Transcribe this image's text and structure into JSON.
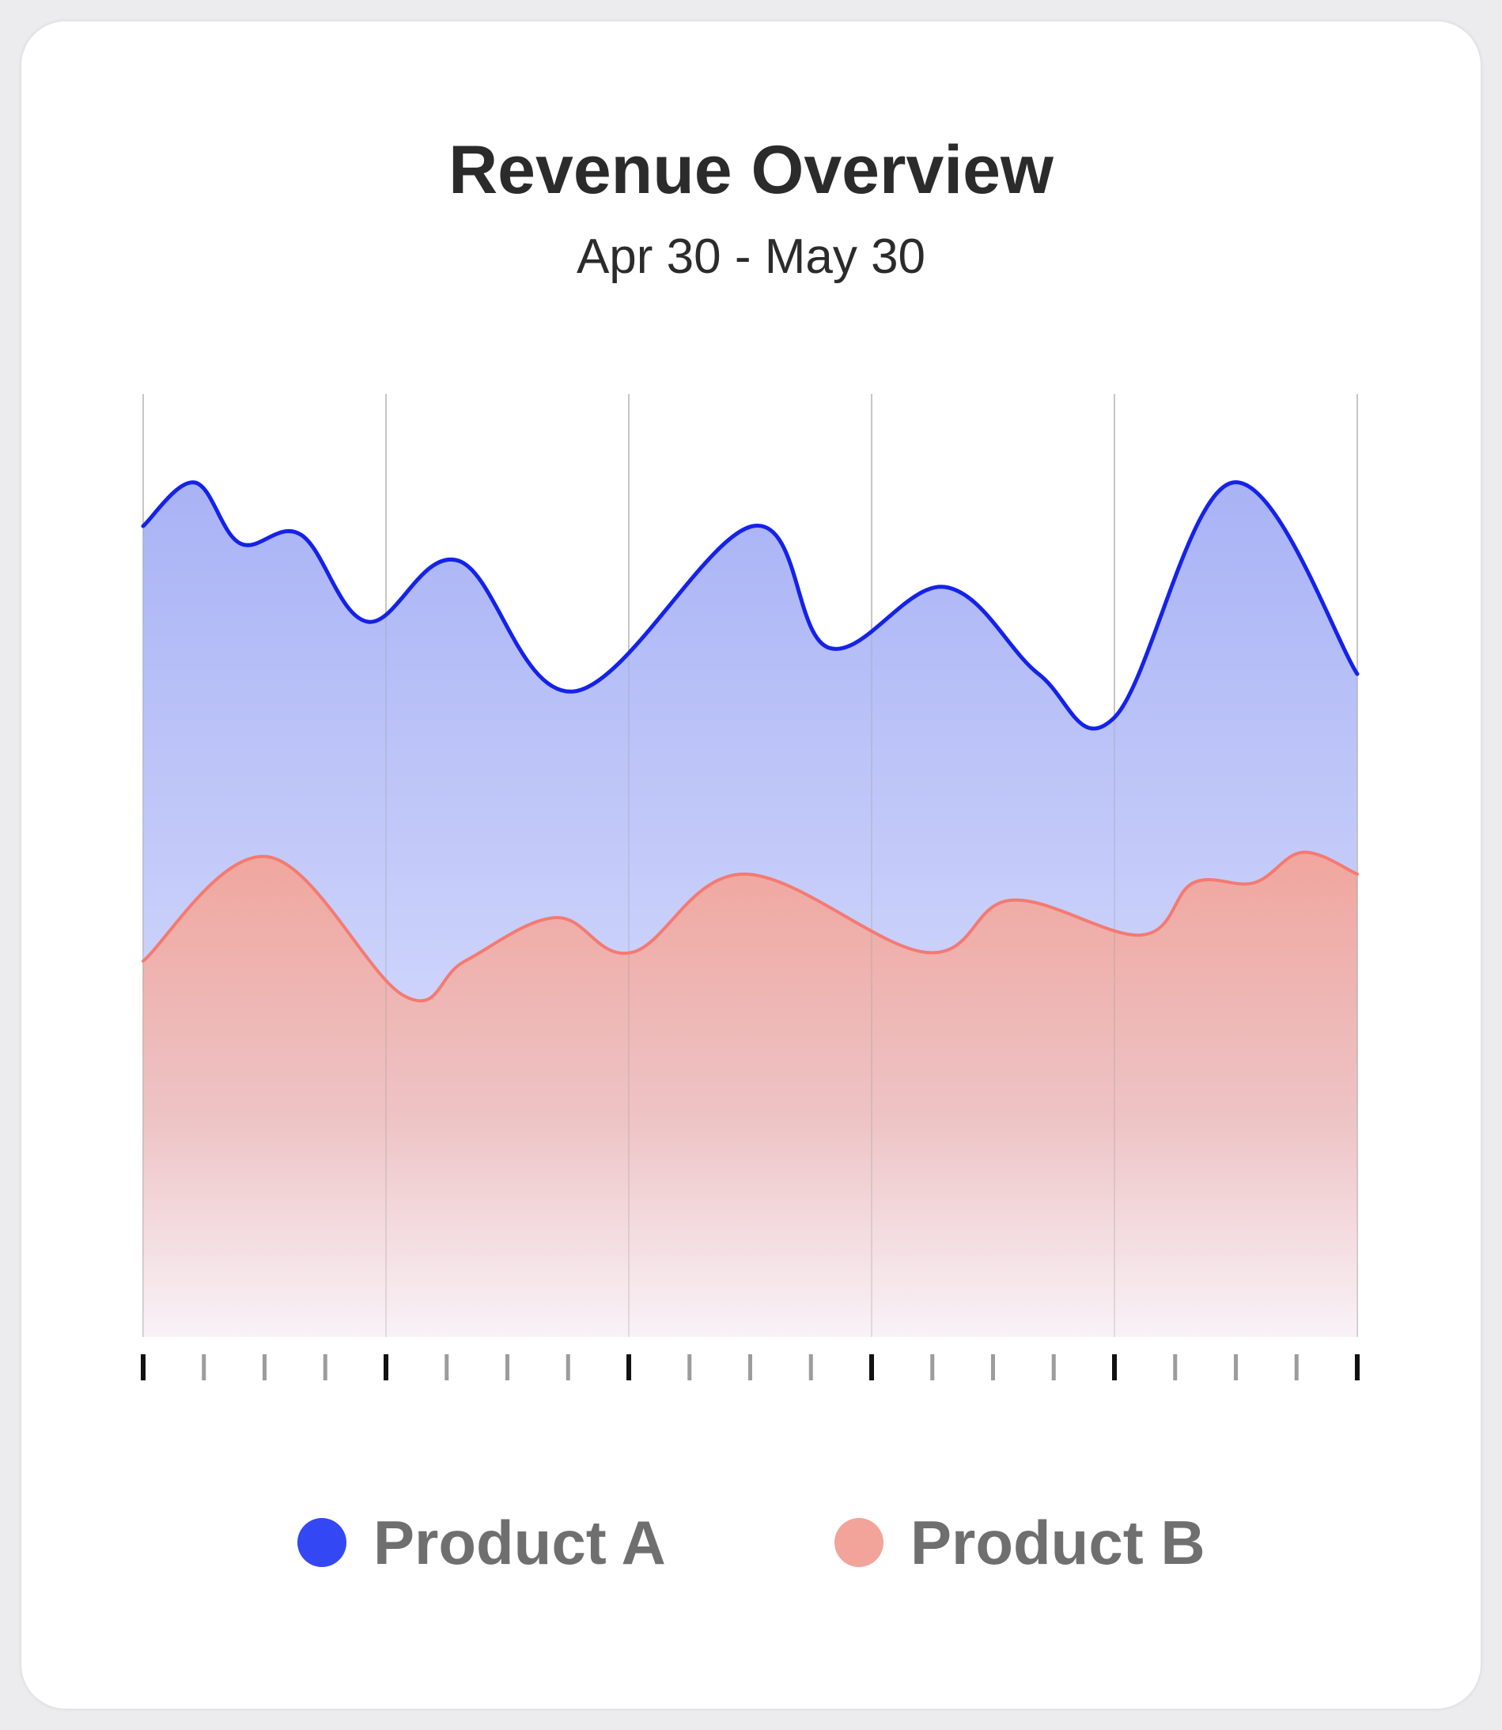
{
  "header": {
    "title": "Revenue Overview",
    "subtitle": "Apr 30 - May 30"
  },
  "legend": [
    {
      "label": "Product A",
      "color": "#3347f5"
    },
    {
      "label": "Product B",
      "color": "#f2a39a"
    }
  ],
  "chart_data": {
    "type": "area",
    "title": "Revenue Overview",
    "subtitle": "Apr 30 - May 30",
    "xlabel": "",
    "ylabel": "",
    "xlim": [
      0,
      20
    ],
    "ylim": [
      0,
      100
    ],
    "grid": {
      "vertical_every": 4,
      "horizontal": false
    },
    "tick_count_major": 6,
    "tick_count_minor_per_segment": 3,
    "legend_position": "bottom",
    "series": [
      {
        "name": "Product A",
        "line_color": "#1522e8",
        "fill_color": "#8f9ff2",
        "points": [
          [
            0,
            90
          ],
          [
            0.85,
            95
          ],
          [
            1.6,
            88
          ],
          [
            2.6,
            89
          ],
          [
            3.7,
            79
          ],
          [
            5.2,
            86
          ],
          [
            7.1,
            71
          ],
          [
            10.05,
            90
          ],
          [
            11.3,
            76
          ],
          [
            13.2,
            83
          ],
          [
            14.75,
            73
          ],
          [
            16.0,
            68
          ],
          [
            17.95,
            95
          ],
          [
            20,
            73
          ]
        ]
      },
      {
        "name": "Product B",
        "line_color": "#f47a72",
        "fill_color": "#f0a69e",
        "points": [
          [
            0,
            40
          ],
          [
            2.05,
            52
          ],
          [
            4.3,
            36
          ],
          [
            5.3,
            40
          ],
          [
            6.8,
            45
          ],
          [
            8.05,
            41
          ],
          [
            9.9,
            50
          ],
          [
            12.9,
            41
          ],
          [
            14.3,
            47
          ],
          [
            16.45,
            43
          ],
          [
            17.3,
            49
          ],
          [
            18.3,
            49
          ],
          [
            19.1,
            52.5
          ],
          [
            20,
            50
          ]
        ]
      }
    ]
  }
}
